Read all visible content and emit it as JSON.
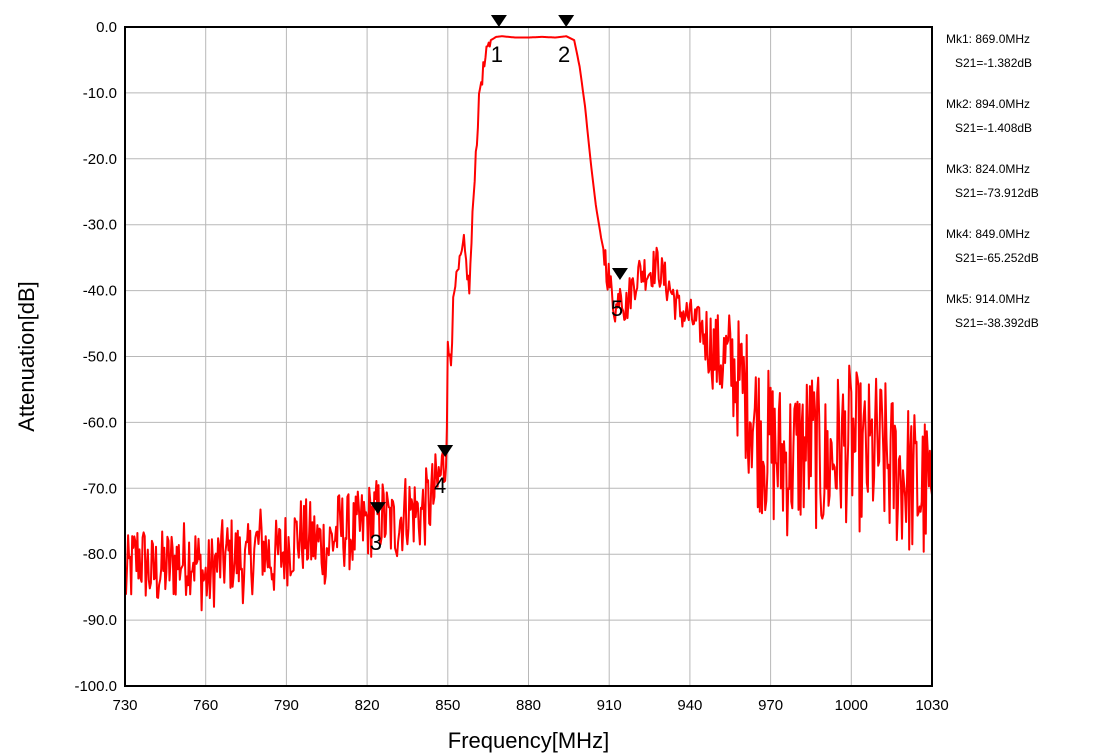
{
  "chart_data": {
    "type": "line",
    "title": "",
    "xlabel": "Frequency[MHz]",
    "ylabel": "Attenuation[dB]",
    "xlim": [
      730,
      1030
    ],
    "ylim": [
      -100,
      0
    ],
    "x_ticks": [
      "730",
      "760",
      "790",
      "820",
      "850",
      "880",
      "910",
      "940",
      "970",
      "1000",
      "1030"
    ],
    "y_ticks": [
      "0.0",
      "-10.0",
      "-20.0",
      "-30.0",
      "-40.0",
      "-50.0",
      "-60.0",
      "-70.0",
      "-80.0",
      "-90.0",
      "-100.0"
    ],
    "grid": true,
    "series": [
      {
        "color": "#ff0000",
        "x": [
          730,
          735,
          740,
          745,
          750,
          755,
          760,
          765,
          770,
          775,
          780,
          785,
          790,
          795,
          800,
          805,
          810,
          815,
          820,
          825,
          830,
          835,
          840,
          845,
          849,
          850,
          852,
          854,
          856,
          858,
          860,
          862,
          864,
          866,
          868,
          870,
          875,
          880,
          885,
          890,
          894,
          897,
          899,
          901,
          903,
          905,
          907,
          909,
          911,
          913,
          914,
          916,
          918,
          920,
          922,
          925,
          928,
          930,
          933,
          936,
          940,
          945,
          950,
          955,
          960,
          963,
          966,
          970,
          975,
          980,
          985,
          990,
          995,
          1000,
          1005,
          1010,
          1015,
          1020,
          1025,
          1030
        ],
        "y": [
          -84,
          -80,
          -83,
          -82,
          -81,
          -80,
          -84,
          -81,
          -80,
          -82,
          -78,
          -81,
          -79,
          -77,
          -78,
          -79,
          -76,
          -77,
          -75,
          -74,
          -76,
          -73,
          -74,
          -71,
          -66,
          -52,
          -41,
          -37,
          -33,
          -40,
          -22,
          -9,
          -5,
          -2,
          -1.5,
          -1.4,
          -1.6,
          -1.6,
          -1.5,
          -1.6,
          -1.4,
          -2,
          -6,
          -12,
          -20,
          -27,
          -32,
          -36,
          -41,
          -43,
          -38.4,
          -43,
          -40,
          -38,
          -37,
          -37,
          -36,
          -38,
          -40,
          -43,
          -44,
          -46,
          -50,
          -51,
          -55,
          -58,
          -62,
          -64,
          -66,
          -65,
          -63,
          -67,
          -64,
          -63,
          -66,
          -64,
          -67,
          -68,
          -70,
          -71
        ]
      }
    ],
    "markers": [
      {
        "label": "1",
        "x": 869.0,
        "y": -1.382
      },
      {
        "label": "2",
        "x": 894.0,
        "y": -1.408
      },
      {
        "label": "3",
        "x": 824.0,
        "y": -73.912
      },
      {
        "label": "4",
        "x": 849.0,
        "y": -65.252
      },
      {
        "label": "5",
        "x": 914.0,
        "y": -38.392
      }
    ],
    "readouts": [
      {
        "line1": "Mk1:  869.0MHz",
        "line2": "S21=-1.382dB"
      },
      {
        "line1": "Mk2:  894.0MHz",
        "line2": "S21=-1.408dB"
      },
      {
        "line1": "Mk3:  824.0MHz",
        "line2": "S21=-73.912dB"
      },
      {
        "line1": "Mk4:  849.0MHz",
        "line2": "S21=-65.252dB"
      },
      {
        "line1": "Mk5:  914.0MHz",
        "line2": "S21=-38.392dB"
      }
    ]
  }
}
